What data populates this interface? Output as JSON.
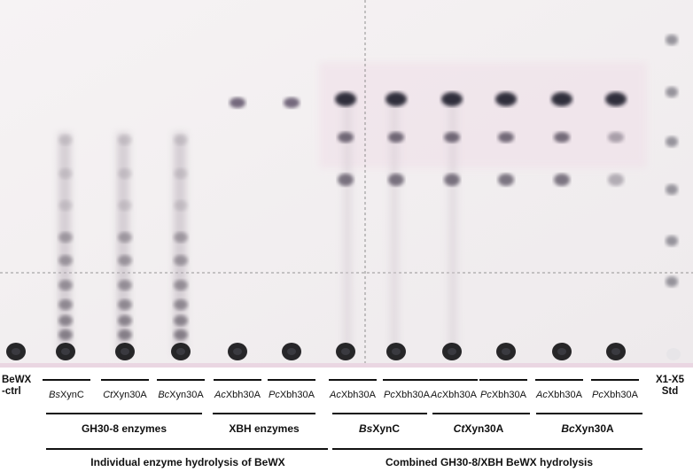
{
  "left_label": [
    "BeWX",
    "-ctrl"
  ],
  "right_label": [
    "X1-X5",
    "Std"
  ],
  "lanes": [
    {
      "prefix": "Bs",
      "suffix": "XynC"
    },
    {
      "prefix": "Ct",
      "suffix": "Xyn30A"
    },
    {
      "prefix": "Bc",
      "suffix": "Xyn30A"
    },
    {
      "prefix": "Ac",
      "suffix": "Xbh30A"
    },
    {
      "prefix": "Pc",
      "suffix": "Xbh30A"
    },
    {
      "prefix": "Ac",
      "suffix": "Xbh30A"
    },
    {
      "prefix": "Pc",
      "suffix": "Xbh30A"
    },
    {
      "prefix": "Ac",
      "suffix": "Xbh30A"
    },
    {
      "prefix": "Pc",
      "suffix": "Xbh30A"
    },
    {
      "prefix": "Ac",
      "suffix": "Xbh30A"
    },
    {
      "prefix": "Pc",
      "suffix": "Xbh30A"
    }
  ],
  "groups": [
    {
      "prefix": "",
      "suffix": "GH30-8 enzymes",
      "bold_italic": false
    },
    {
      "prefix": "",
      "suffix": "XBH enzymes",
      "bold_italic": false
    },
    {
      "prefix": "Bs",
      "suffix": "XynC",
      "bold_italic": true
    },
    {
      "prefix": "Ct",
      "suffix": "Xyn30A",
      "bold_italic": true
    },
    {
      "prefix": "Bc",
      "suffix": "Xyn30A",
      "bold_italic": true
    }
  ],
  "headers": [
    "Individual enzyme hydrolysis of BeWX",
    "Combined GH30-8/XBH BeWX hydrolysis"
  ]
}
